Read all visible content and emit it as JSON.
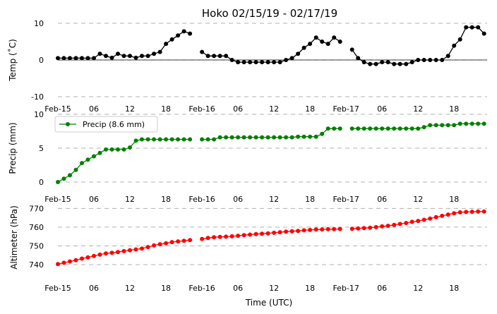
{
  "title": "Hoko 02/15/19 - 02/17/19",
  "xlabel": "Time (UTC)",
  "x_ticks": [
    "Feb-15",
    "06",
    "12",
    "18",
    "Feb-16",
    "06",
    "12",
    "18",
    "Feb-17",
    "06",
    "12",
    "18"
  ],
  "chart_data": [
    {
      "type": "line",
      "ylabel": "Temp (˚C)",
      "ylim": [
        -10,
        10
      ],
      "yticks": [
        -10,
        0,
        10
      ],
      "grid": true,
      "zero_line": true,
      "x_unit": "hours since Feb-15 00:00 UTC",
      "xlim": [
        0,
        71.5
      ],
      "color": "#000000",
      "series": [
        {
          "name": "",
          "x": [
            0,
            1,
            2,
            3,
            4,
            5,
            6,
            7,
            8,
            9,
            10,
            11,
            12,
            13,
            14,
            15,
            16,
            17,
            18,
            19,
            20,
            21,
            22,
            23,
            24,
            25,
            26,
            27,
            28,
            29,
            30,
            31,
            32,
            33,
            34,
            35,
            36,
            37,
            38,
            39,
            40,
            41,
            42,
            43,
            44,
            45,
            46,
            47,
            48,
            49,
            50,
            51,
            52,
            53,
            54,
            55,
            56,
            57,
            58,
            59,
            60,
            61,
            62,
            63,
            64,
            65,
            66,
            67,
            68,
            69,
            70,
            71
          ],
          "values": [
            0.5,
            0.5,
            0.5,
            0.5,
            0.5,
            0.5,
            0.5,
            1.7,
            1.1,
            0.6,
            1.7,
            1.1,
            1.1,
            0.6,
            1.1,
            1.1,
            1.7,
            2.2,
            4.4,
            5.6,
            6.7,
            7.8,
            7.2,
            null,
            2.2,
            1.1,
            1.1,
            1.1,
            1.1,
            0,
            -0.6,
            -0.6,
            -0.6,
            -0.6,
            -0.6,
            -0.6,
            -0.6,
            -0.6,
            0,
            0.5,
            1.7,
            3.3,
            4.4,
            6.1,
            5,
            4.4,
            6.1,
            5,
            null,
            2.8,
            0.5,
            -0.6,
            -1.1,
            -1.1,
            -0.6,
            -0.6,
            -1.1,
            -1.1,
            -1.1,
            -0.6,
            0,
            0,
            0,
            0,
            0,
            1.1,
            3.9,
            5.6,
            8.9,
            8.9,
            8.9,
            7.2
          ]
        }
      ]
    },
    {
      "type": "line",
      "ylabel": "Precip (mm)",
      "ylim": [
        0,
        10
      ],
      "yticks": [
        0,
        5,
        10
      ],
      "grid": true,
      "legend_position": "top-left",
      "x_unit": "hours since Feb-15 00:00 UTC",
      "xlim": [
        0,
        71.5
      ],
      "color": "#008000",
      "series": [
        {
          "name": "Precip (8.6 mm)",
          "x": [
            0,
            1,
            2,
            3,
            4,
            5,
            6,
            7,
            8,
            9,
            10,
            11,
            12,
            13,
            14,
            15,
            16,
            17,
            18,
            19,
            20,
            21,
            22,
            23,
            24,
            25,
            26,
            27,
            28,
            29,
            30,
            31,
            32,
            33,
            34,
            35,
            36,
            37,
            38,
            39,
            40,
            41,
            42,
            43,
            44,
            45,
            46,
            47,
            48,
            49,
            50,
            51,
            52,
            53,
            54,
            55,
            56,
            57,
            58,
            59,
            60,
            61,
            62,
            63,
            64,
            65,
            66,
            67,
            68,
            69,
            70,
            71
          ],
          "values": [
            0,
            0.5,
            1,
            1.8,
            2.8,
            3.3,
            3.8,
            4.3,
            4.8,
            4.8,
            4.8,
            4.8,
            5.1,
            6.1,
            6.3,
            6.3,
            6.3,
            6.3,
            6.3,
            6.3,
            6.3,
            6.3,
            6.3,
            null,
            6.3,
            6.3,
            6.3,
            6.6,
            6.6,
            6.6,
            6.6,
            6.6,
            6.6,
            6.6,
            6.6,
            6.6,
            6.6,
            6.6,
            6.6,
            6.6,
            6.7,
            6.7,
            6.7,
            6.7,
            7.1,
            7.9,
            7.9,
            7.9,
            null,
            7.9,
            7.9,
            7.9,
            7.9,
            7.9,
            7.9,
            7.9,
            7.9,
            7.9,
            7.9,
            7.9,
            7.9,
            8.1,
            8.4,
            8.4,
            8.4,
            8.4,
            8.4,
            8.6,
            8.6,
            8.6,
            8.6,
            8.6
          ]
        }
      ]
    },
    {
      "type": "line",
      "ylabel": "Altimeter (hPa)",
      "ylim": [
        737,
        772
      ],
      "yticks": [
        740,
        750,
        760,
        770
      ],
      "grid": true,
      "x_unit": "hours since Feb-15 00:00 UTC",
      "xlim": [
        0,
        71.5
      ],
      "color": "#ff0000",
      "series": [
        {
          "name": "",
          "x": [
            0,
            1,
            2,
            3,
            4,
            5,
            6,
            7,
            8,
            9,
            10,
            11,
            12,
            13,
            14,
            15,
            16,
            17,
            18,
            19,
            20,
            21,
            22,
            23,
            24,
            25,
            26,
            27,
            28,
            29,
            30,
            31,
            32,
            33,
            34,
            35,
            36,
            37,
            38,
            39,
            40,
            41,
            42,
            43,
            44,
            45,
            46,
            47,
            48,
            49,
            50,
            51,
            52,
            53,
            54,
            55,
            56,
            57,
            58,
            59,
            60,
            61,
            62,
            63,
            64,
            65,
            66,
            67,
            68,
            69,
            70,
            71
          ],
          "values": [
            740.3,
            741.0,
            741.7,
            742.4,
            743.2,
            743.9,
            744.6,
            745.3,
            746.0,
            746.3,
            746.7,
            747.2,
            747.7,
            748.1,
            748.6,
            749.4,
            750.3,
            750.9,
            751.4,
            752.0,
            752.4,
            752.7,
            753.1,
            null,
            753.7,
            754.2,
            754.6,
            754.8,
            754.9,
            755.1,
            755.4,
            755.7,
            756.0,
            756.3,
            756.5,
            756.7,
            757.0,
            757.3,
            757.6,
            757.8,
            758.0,
            758.3,
            758.5,
            758.7,
            758.8,
            758.9,
            758.9,
            759.0,
            null,
            759.1,
            759.3,
            759.5,
            759.7,
            760.0,
            760.4,
            760.7,
            761.2,
            761.7,
            762.2,
            762.8,
            763.3,
            763.9,
            764.6,
            765.3,
            766.0,
            766.7,
            767.4,
            767.9,
            768.1,
            768.2,
            768.3,
            768.3
          ]
        }
      ]
    }
  ]
}
